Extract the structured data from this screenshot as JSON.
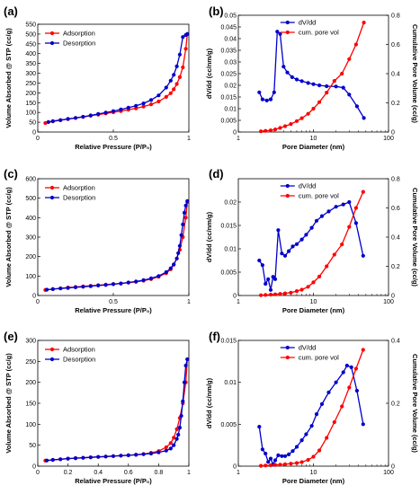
{
  "figure": {
    "panel_labels": [
      "(a)",
      "(b)",
      "(c)",
      "(d)",
      "(e)",
      "(f)"
    ]
  },
  "colors": {
    "adsorption": "#ff0000",
    "desorption": "#0000cc",
    "axis": "#000000"
  },
  "chart_data": [
    {
      "id": "a",
      "type": "line",
      "xlabel": "Relative Pressure (P/P₀)",
      "ylabel": "Volume Absorbed @ STP (cc/g)",
      "xlim": [
        0,
        1
      ],
      "ylim": [
        0,
        550
      ],
      "xticks": [
        "0",
        "0.5",
        "1"
      ],
      "yticks": [
        "0",
        "50",
        "100",
        "150",
        "200",
        "250",
        "300",
        "350",
        "400",
        "450",
        "500",
        "550"
      ],
      "legend": "top-left",
      "series": [
        {
          "name": "Adsorption",
          "color": "#ff0000",
          "x": [
            0.05,
            0.1,
            0.15,
            0.2,
            0.25,
            0.3,
            0.35,
            0.4,
            0.45,
            0.5,
            0.55,
            0.6,
            0.65,
            0.7,
            0.75,
            0.8,
            0.85,
            0.88,
            0.9,
            0.92,
            0.94,
            0.96,
            0.98,
            0.99
          ],
          "y": [
            46,
            54,
            60,
            66,
            72,
            77,
            83,
            89,
            95,
            101,
            107,
            114,
            121,
            130,
            141,
            156,
            179,
            198,
            218,
            245,
            280,
            330,
            425,
            500
          ]
        },
        {
          "name": "Desorption",
          "color": "#0000cc",
          "x": [
            0.99,
            0.98,
            0.96,
            0.94,
            0.92,
            0.9,
            0.88,
            0.85,
            0.8,
            0.75,
            0.7,
            0.65,
            0.6,
            0.55,
            0.5,
            0.45,
            0.4,
            0.35,
            0.3,
            0.25,
            0.2,
            0.15,
            0.1,
            0.07
          ],
          "y": [
            500,
            495,
            485,
            395,
            335,
            292,
            262,
            227,
            187,
            163,
            146,
            134,
            124,
            115,
            107,
            99,
            92,
            85,
            78,
            72,
            67,
            61,
            56,
            51
          ]
        }
      ]
    },
    {
      "id": "b",
      "type": "line",
      "xlabel": "Pore Diameter (nm)",
      "ylabel": "dV/dd (cc/nm/g)",
      "y2label": "Cumulative Pore Volume (cc/g)",
      "xscale": "log",
      "xlim": [
        1,
        100
      ],
      "ylim": [
        0,
        0.05
      ],
      "y2lim": [
        0,
        0.8
      ],
      "xticks": [
        "1",
        "10",
        "100"
      ],
      "yticks": [
        "0",
        "0.005",
        "0.01",
        "0.015",
        "0.02",
        "0.025",
        "0.03",
        "0.035",
        "0.04",
        "0.045",
        "0.05"
      ],
      "y2ticks": [
        "0",
        "0.2",
        "0.4",
        "0.6",
        "0.8"
      ],
      "legend": "top",
      "series": [
        {
          "name": "dV/dd",
          "color": "#0000cc",
          "axis": "left",
          "x": [
            1.9,
            2.1,
            2.4,
            2.7,
            3.0,
            3.3,
            3.6,
            4.0,
            4.5,
            5.2,
            6.0,
            7.0,
            8.5,
            10,
            12,
            15,
            20,
            25,
            30,
            38,
            47
          ],
          "y": [
            0.017,
            0.014,
            0.0135,
            0.014,
            0.017,
            0.043,
            0.042,
            0.028,
            0.0255,
            0.0235,
            0.0225,
            0.0218,
            0.021,
            0.0205,
            0.02,
            0.0196,
            0.0195,
            0.019,
            0.016,
            0.011,
            0.006
          ]
        },
        {
          "name": "cum. pore vol",
          "color": "#ff0000",
          "axis": "right",
          "x": [
            2.0,
            2.3,
            2.7,
            3.1,
            3.6,
            4.2,
            5.0,
            6.0,
            7.0,
            8.5,
            10,
            12,
            15,
            19,
            24,
            30,
            37,
            47
          ],
          "y": [
            0.005,
            0.008,
            0.012,
            0.018,
            0.028,
            0.04,
            0.055,
            0.075,
            0.095,
            0.125,
            0.16,
            0.205,
            0.27,
            0.35,
            0.4,
            0.5,
            0.6,
            0.75
          ]
        }
      ]
    },
    {
      "id": "c",
      "type": "line",
      "xlabel": "Relative Pressure (P/P₀)",
      "ylabel": "Volume Absorbed @ STP (cc/g)",
      "xlim": [
        0,
        1
      ],
      "ylim": [
        0,
        600
      ],
      "xticks": [
        "0",
        "0.5",
        "1"
      ],
      "yticks": [
        "0",
        "100",
        "200",
        "300",
        "400",
        "500",
        "600"
      ],
      "legend": "top-left",
      "series": [
        {
          "name": "Adsorption",
          "color": "#ff0000",
          "x": [
            0.05,
            0.1,
            0.15,
            0.2,
            0.25,
            0.3,
            0.35,
            0.4,
            0.45,
            0.5,
            0.55,
            0.6,
            0.65,
            0.7,
            0.75,
            0.8,
            0.85,
            0.88,
            0.9,
            0.92,
            0.94,
            0.96,
            0.98,
            0.99
          ],
          "y": [
            28,
            33,
            37,
            41,
            44,
            47,
            50,
            53,
            56,
            59,
            62,
            66,
            70,
            76,
            84,
            96,
            115,
            135,
            158,
            190,
            235,
            300,
            400,
            480
          ]
        },
        {
          "name": "Desorption",
          "color": "#0000cc",
          "x": [
            0.99,
            0.98,
            0.97,
            0.96,
            0.95,
            0.94,
            0.93,
            0.92,
            0.9,
            0.88,
            0.85,
            0.8,
            0.75,
            0.7,
            0.65,
            0.6,
            0.55,
            0.5,
            0.45,
            0.4,
            0.35,
            0.3,
            0.25,
            0.2,
            0.15,
            0.1,
            0.06
          ],
          "y": [
            485,
            462,
            425,
            365,
            310,
            255,
            218,
            190,
            160,
            140,
            120,
            100,
            88,
            79,
            72,
            67,
            62,
            58,
            54,
            51,
            48,
            45,
            42,
            39,
            36,
            33,
            30
          ]
        }
      ]
    },
    {
      "id": "d",
      "type": "line",
      "xlabel": "Pore Diameter (nm)",
      "ylabel": "dV/dd (cc/nm/g)",
      "y2label": "Cumulative Pore Volume (cc/g)",
      "xscale": "log",
      "xlim": [
        1,
        100
      ],
      "ylim": [
        0,
        0.025
      ],
      "y2lim": [
        0,
        0.8
      ],
      "xticks": [
        "1",
        "10",
        "100"
      ],
      "yticks": [
        "0",
        "0.005",
        "0.01",
        "0.015",
        "0.02"
      ],
      "y2ticks": [
        "0",
        "0.2",
        "0.4",
        "0.6",
        "0.8"
      ],
      "legend": "top",
      "series": [
        {
          "name": "dV/dd",
          "color": "#0000cc",
          "axis": "left",
          "x": [
            1.9,
            2.1,
            2.3,
            2.5,
            2.7,
            2.9,
            3.1,
            3.4,
            3.8,
            4.2,
            4.7,
            5.3,
            6.0,
            7.0,
            8.0,
            9.5,
            11,
            13,
            16,
            20,
            25,
            30,
            37,
            46
          ],
          "y": [
            0.0075,
            0.0065,
            0.0025,
            0.0035,
            0.0012,
            0.004,
            0.0035,
            0.014,
            0.009,
            0.0085,
            0.0095,
            0.0105,
            0.011,
            0.012,
            0.013,
            0.0145,
            0.016,
            0.017,
            0.018,
            0.019,
            0.0195,
            0.02,
            0.0155,
            0.0085
          ]
        },
        {
          "name": "cum. pore vol",
          "color": "#ff0000",
          "axis": "right",
          "x": [
            2.0,
            2.3,
            2.7,
            3.1,
            3.6,
            4.2,
            5.0,
            6.0,
            7.0,
            8.5,
            10,
            12,
            15,
            19,
            24,
            30,
            37,
            46
          ],
          "y": [
            0.002,
            0.004,
            0.006,
            0.008,
            0.011,
            0.015,
            0.02,
            0.03,
            0.04,
            0.06,
            0.09,
            0.13,
            0.2,
            0.28,
            0.35,
            0.47,
            0.6,
            0.71
          ]
        }
      ]
    },
    {
      "id": "e",
      "type": "line",
      "xlabel": "Relative Pressure (P/P₀)",
      "ylabel": "Volume Absorbed @ STP (cc/g)",
      "xlim": [
        0,
        1
      ],
      "ylim": [
        0,
        300
      ],
      "xticks": [
        "0",
        "0.2",
        "0.4",
        "0.6",
        "0.8",
        "1"
      ],
      "yticks": [
        "0",
        "50",
        "100",
        "150",
        "200",
        "250",
        "300"
      ],
      "legend": "top-left",
      "series": [
        {
          "name": "Adsorption",
          "color": "#ff0000",
          "x": [
            0.05,
            0.1,
            0.15,
            0.2,
            0.25,
            0.3,
            0.35,
            0.4,
            0.45,
            0.5,
            0.55,
            0.6,
            0.65,
            0.7,
            0.75,
            0.8,
            0.85,
            0.88,
            0.9,
            0.92,
            0.94,
            0.96,
            0.98,
            0.99
          ],
          "y": [
            13,
            15,
            16.5,
            18,
            19,
            20,
            21,
            22,
            23,
            24,
            25,
            26,
            27.5,
            29,
            32,
            36,
            45,
            55,
            68,
            88,
            115,
            150,
            200,
            255
          ]
        },
        {
          "name": "Desorption",
          "color": "#0000cc",
          "x": [
            0.99,
            0.98,
            0.97,
            0.96,
            0.95,
            0.94,
            0.93,
            0.92,
            0.9,
            0.88,
            0.85,
            0.8,
            0.75,
            0.7,
            0.65,
            0.6,
            0.55,
            0.5,
            0.45,
            0.4,
            0.35,
            0.3,
            0.25,
            0.2,
            0.15,
            0.1,
            0.06
          ],
          "y": [
            255,
            240,
            200,
            155,
            120,
            92,
            75,
            65,
            50,
            42,
            37,
            33,
            30,
            28.5,
            27,
            26,
            25,
            24,
            23,
            22,
            21,
            20,
            19,
            18,
            16.5,
            15,
            13.5
          ]
        }
      ]
    },
    {
      "id": "f",
      "type": "line",
      "xlabel": "Pore Diameter (nm)",
      "ylabel": "dV/dd (cc/nm/g)",
      "y2label": "Cumulative Pore Volume (cc/g)",
      "xscale": "log",
      "xlim": [
        1,
        100
      ],
      "ylim": [
        0,
        0.015
      ],
      "y2lim": [
        0,
        0.4
      ],
      "xticks": [
        "1",
        "10",
        "100"
      ],
      "yticks": [
        "0",
        "0.005",
        "0.01",
        "0.015"
      ],
      "y2ticks": [
        "0",
        "0.2",
        "0.4"
      ],
      "legend": "top",
      "series": [
        {
          "name": "dV/dd",
          "color": "#0000cc",
          "axis": "left",
          "x": [
            1.9,
            2.1,
            2.3,
            2.5,
            2.7,
            2.9,
            3.1,
            3.4,
            3.8,
            4.2,
            4.7,
            5.3,
            6.0,
            7.0,
            8.0,
            9.5,
            11,
            13,
            16,
            20,
            25,
            28,
            32,
            38,
            46
          ],
          "y": [
            0.0047,
            0.002,
            0.0015,
            0.0005,
            0.0009,
            0.0002,
            0.0007,
            0.0013,
            0.0012,
            0.0012,
            0.0014,
            0.0018,
            0.0023,
            0.0031,
            0.0038,
            0.0048,
            0.0062,
            0.0074,
            0.0088,
            0.01,
            0.0112,
            0.012,
            0.0118,
            0.009,
            0.005
          ]
        },
        {
          "name": "cum. pore vol",
          "color": "#ff0000",
          "axis": "right",
          "x": [
            2.0,
            2.3,
            2.7,
            3.1,
            3.6,
            4.2,
            5.0,
            6.0,
            7.0,
            8.5,
            10,
            12,
            15,
            19,
            24,
            30,
            37,
            46
          ],
          "y": [
            0.001,
            0.002,
            0.003,
            0.004,
            0.005,
            0.006,
            0.008,
            0.01,
            0.013,
            0.02,
            0.03,
            0.05,
            0.09,
            0.14,
            0.19,
            0.25,
            0.31,
            0.37
          ]
        }
      ]
    }
  ]
}
